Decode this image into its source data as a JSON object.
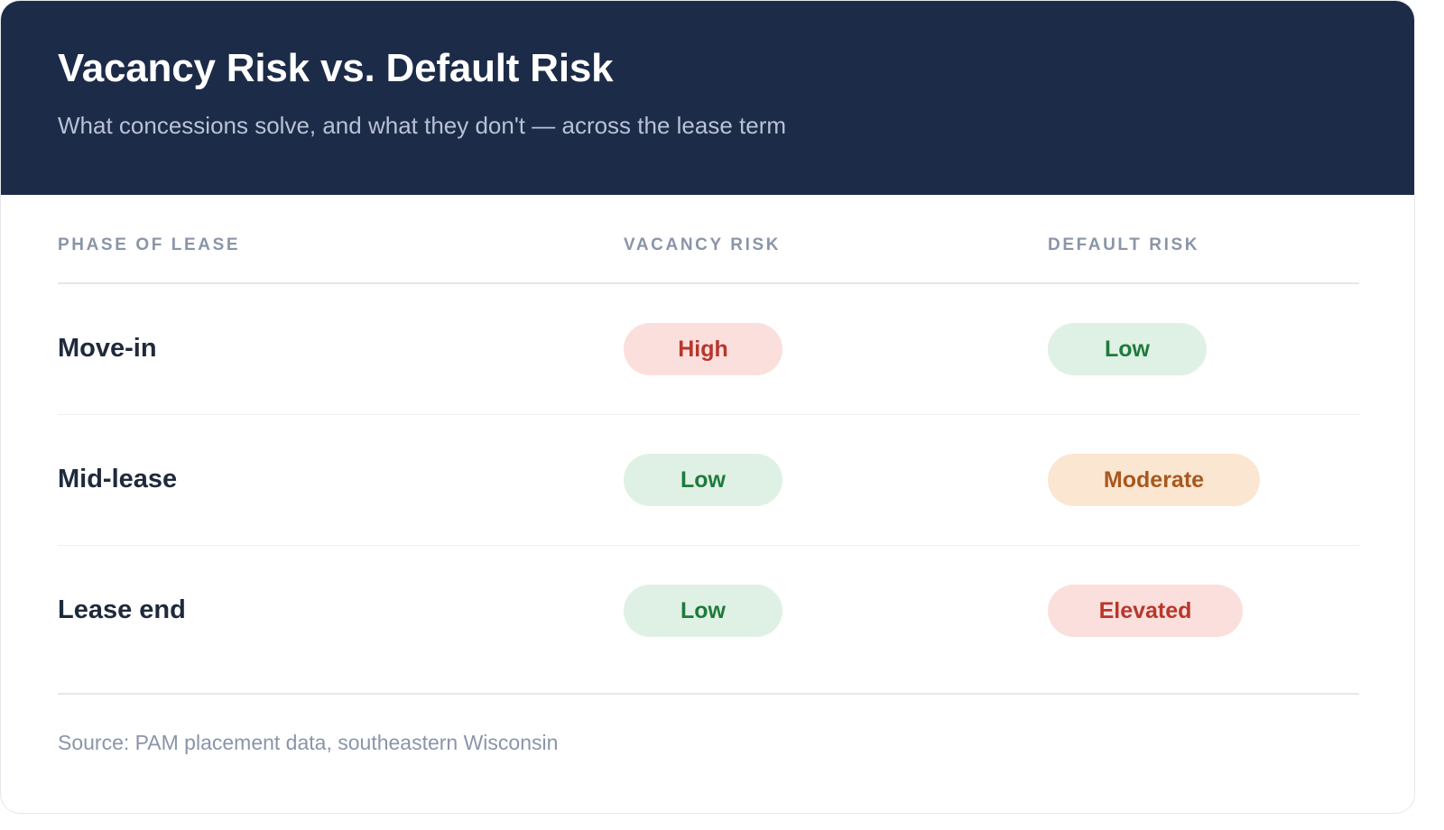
{
  "header": {
    "title": "Vacancy Risk vs. Default Risk",
    "subtitle": "What concessions solve, and what they don't — across the lease term",
    "background_color": "#1c2b48"
  },
  "table": {
    "columns": [
      "PHASE OF LEASE",
      "VACANCY RISK",
      "DEFAULT RISK"
    ],
    "rows": [
      {
        "phase": "Move-in",
        "vacancy_risk": "High",
        "default_risk": "Low"
      },
      {
        "phase": "Mid-lease",
        "vacancy_risk": "Low",
        "default_risk": "Moderate"
      },
      {
        "phase": "Lease end",
        "vacancy_risk": "Low",
        "default_risk": "Elevated"
      }
    ]
  },
  "pill_colors": {
    "high": {
      "background": "#fbdfdc",
      "text": "#b7372c"
    },
    "low": {
      "background": "#dff1e4",
      "text": "#1f7a3c"
    },
    "moderate": {
      "background": "#fbe6d2",
      "text": "#a8581e"
    },
    "elevated": {
      "background": "#fbdfdc",
      "text": "#b7372c"
    }
  },
  "footer": {
    "source": "Source: PAM placement data, southeastern Wisconsin"
  }
}
